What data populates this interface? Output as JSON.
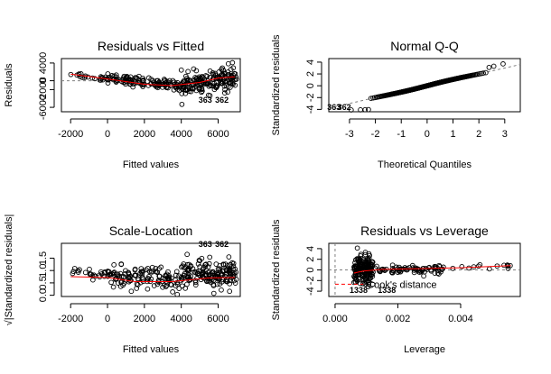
{
  "chart_data": [
    {
      "type": "scatter",
      "title": "Residuals vs Fitted",
      "xlabel": "Fitted values",
      "ylabel": "Residuals",
      "xlim": [
        -2500,
        7200
      ],
      "ylim": [
        -7000,
        5000
      ],
      "xticks": [
        -2000,
        0,
        2000,
        4000,
        6000
      ],
      "yticks": [
        -6000,
        -2000,
        0,
        4000
      ],
      "xtick_labels": [
        "-2000",
        "0",
        "2000",
        "4000",
        "6000"
      ],
      "ytick_labels": [
        "-6000",
        "-2000",
        "0",
        "4000"
      ],
      "smooth_line": {
        "x": [
          -2000,
          0,
          2000,
          3500,
          5000,
          6000,
          6900
        ],
        "y": [
          1500,
          400,
          -800,
          -1100,
          -400,
          600,
          900
        ]
      },
      "reference_line": {
        "y": 0
      },
      "point_labels": [
        {
          "text": "363",
          "x": 5300,
          "y": -5000
        },
        {
          "text": "362",
          "x": 6200,
          "y": -5000
        }
      ],
      "point_groups": [
        {
          "x_range": [
            -2000,
            0
          ],
          "center": [
            1500,
            400
          ],
          "spread": 600,
          "count": 22
        },
        {
          "x_range": [
            0,
            4000
          ],
          "center": [
            400,
            -1000
          ],
          "spread": 1100,
          "count": 130
        },
        {
          "x_range": [
            4000,
            7000
          ],
          "center": [
            -1000,
            600
          ],
          "spread": 2500,
          "count": 170
        }
      ]
    },
    {
      "type": "scatter",
      "title": "Normal Q-Q",
      "xlabel": "Theoretical Quantiles",
      "ylabel": "Standardized residuals",
      "xlim": [
        -3.8,
        3.6
      ],
      "ylim": [
        -4.4,
        4.6
      ],
      "xticks": [
        -3,
        -2,
        -1,
        0,
        1,
        2,
        3
      ],
      "yticks": [
        -4,
        -2,
        0,
        2,
        4
      ],
      "xtick_labels": [
        "-3",
        "-2",
        "-1",
        "0",
        "1",
        "2",
        "3"
      ],
      "ytick_labels": [
        "-4",
        "-2",
        "0",
        "2",
        "4"
      ],
      "reference_line": {
        "slope": 1,
        "intercept": 0
      },
      "point_labels": [
        {
          "text": "363",
          "x": -3.6,
          "y": -4.3
        },
        {
          "text": "362",
          "x": -3.2,
          "y": -4.3
        }
      ],
      "sample_count": 300
    },
    {
      "type": "scatter",
      "title": "Scale-Location",
      "xlabel": "Fitted values",
      "ylabel": "√|Standardized residuals|",
      "xlim": [
        -2500,
        7200
      ],
      "ylim": [
        -0.05,
        2.1
      ],
      "xticks": [
        -2000,
        0,
        2000,
        4000,
        6000
      ],
      "yticks": [
        0.0,
        0.5,
        1.0,
        1.5
      ],
      "xtick_labels": [
        "-2000",
        "0",
        "2000",
        "4000",
        "6000"
      ],
      "ytick_labels": [
        "0.0",
        "0.5",
        "1.0",
        "1.5"
      ],
      "smooth_line": {
        "x": [
          -2000,
          0,
          1500,
          3500,
          5500,
          6900
        ],
        "y": [
          0.75,
          0.72,
          0.55,
          0.55,
          0.7,
          0.72
        ]
      },
      "point_labels": [
        {
          "text": "363",
          "x": 5300,
          "y": 1.95
        },
        {
          "text": "362",
          "x": 6200,
          "y": 1.95
        }
      ],
      "point_groups": [
        {
          "x_range": [
            -2000,
            0
          ],
          "center": [
            1.0,
            0.8
          ],
          "spread": 0.18,
          "count": 22
        },
        {
          "x_range": [
            0,
            4000
          ],
          "center": [
            0.75,
            0.6
          ],
          "spread": 0.45,
          "count": 130
        },
        {
          "x_range": [
            4000,
            7000
          ],
          "center": [
            0.8,
            0.9
          ],
          "spread": 0.55,
          "count": 170
        }
      ]
    },
    {
      "type": "scatter",
      "title": "Residuals vs Leverage",
      "xlabel": "Leverage",
      "ylabel": "Standardized residuals",
      "xlim": [
        -0.0002,
        0.0059
      ],
      "ylim": [
        -5.0,
        5.0
      ],
      "xticks": [
        0.0,
        0.002,
        0.004
      ],
      "yticks": [
        -4,
        -2,
        0,
        2,
        4
      ],
      "xtick_labels": [
        "0.000",
        "0.002",
        "0.004"
      ],
      "ytick_labels": [
        "-4",
        "-2",
        "0",
        "2",
        "4"
      ],
      "reference_lines": [
        {
          "y": 0
        },
        {
          "x": 0
        }
      ],
      "cooks_distance_label": "Cook's distance",
      "cooks_distance_line": {
        "x": [
          0.0,
          0.0009
        ],
        "y": [
          -2.7,
          -2.7
        ]
      },
      "smooth_line": {
        "x": [
          0.0006,
          0.0009,
          0.0015,
          0.0025,
          0.004,
          0.0056
        ],
        "y": [
          -0.6,
          -0.2,
          0.1,
          0.2,
          0.4,
          0.8
        ]
      },
      "point_labels": [
        {
          "text": "1338",
          "x": 0.00075,
          "y": -4.3
        },
        {
          "text": "1338",
          "x": 0.00165,
          "y": -4.3
        }
      ],
      "point_groups": [
        {
          "x_range": [
            0.0006,
            0.0012
          ],
          "center": [
            0.0,
            0.0
          ],
          "spread": 2.6,
          "count": 180
        },
        {
          "x_range": [
            0.0012,
            0.0035
          ],
          "center": [
            0.0,
            0.2
          ],
          "spread": 0.9,
          "count": 80
        },
        {
          "x_range": [
            0.0035,
            0.0056
          ],
          "center": [
            0.3,
            0.8
          ],
          "spread": 0.5,
          "count": 14
        }
      ]
    }
  ]
}
